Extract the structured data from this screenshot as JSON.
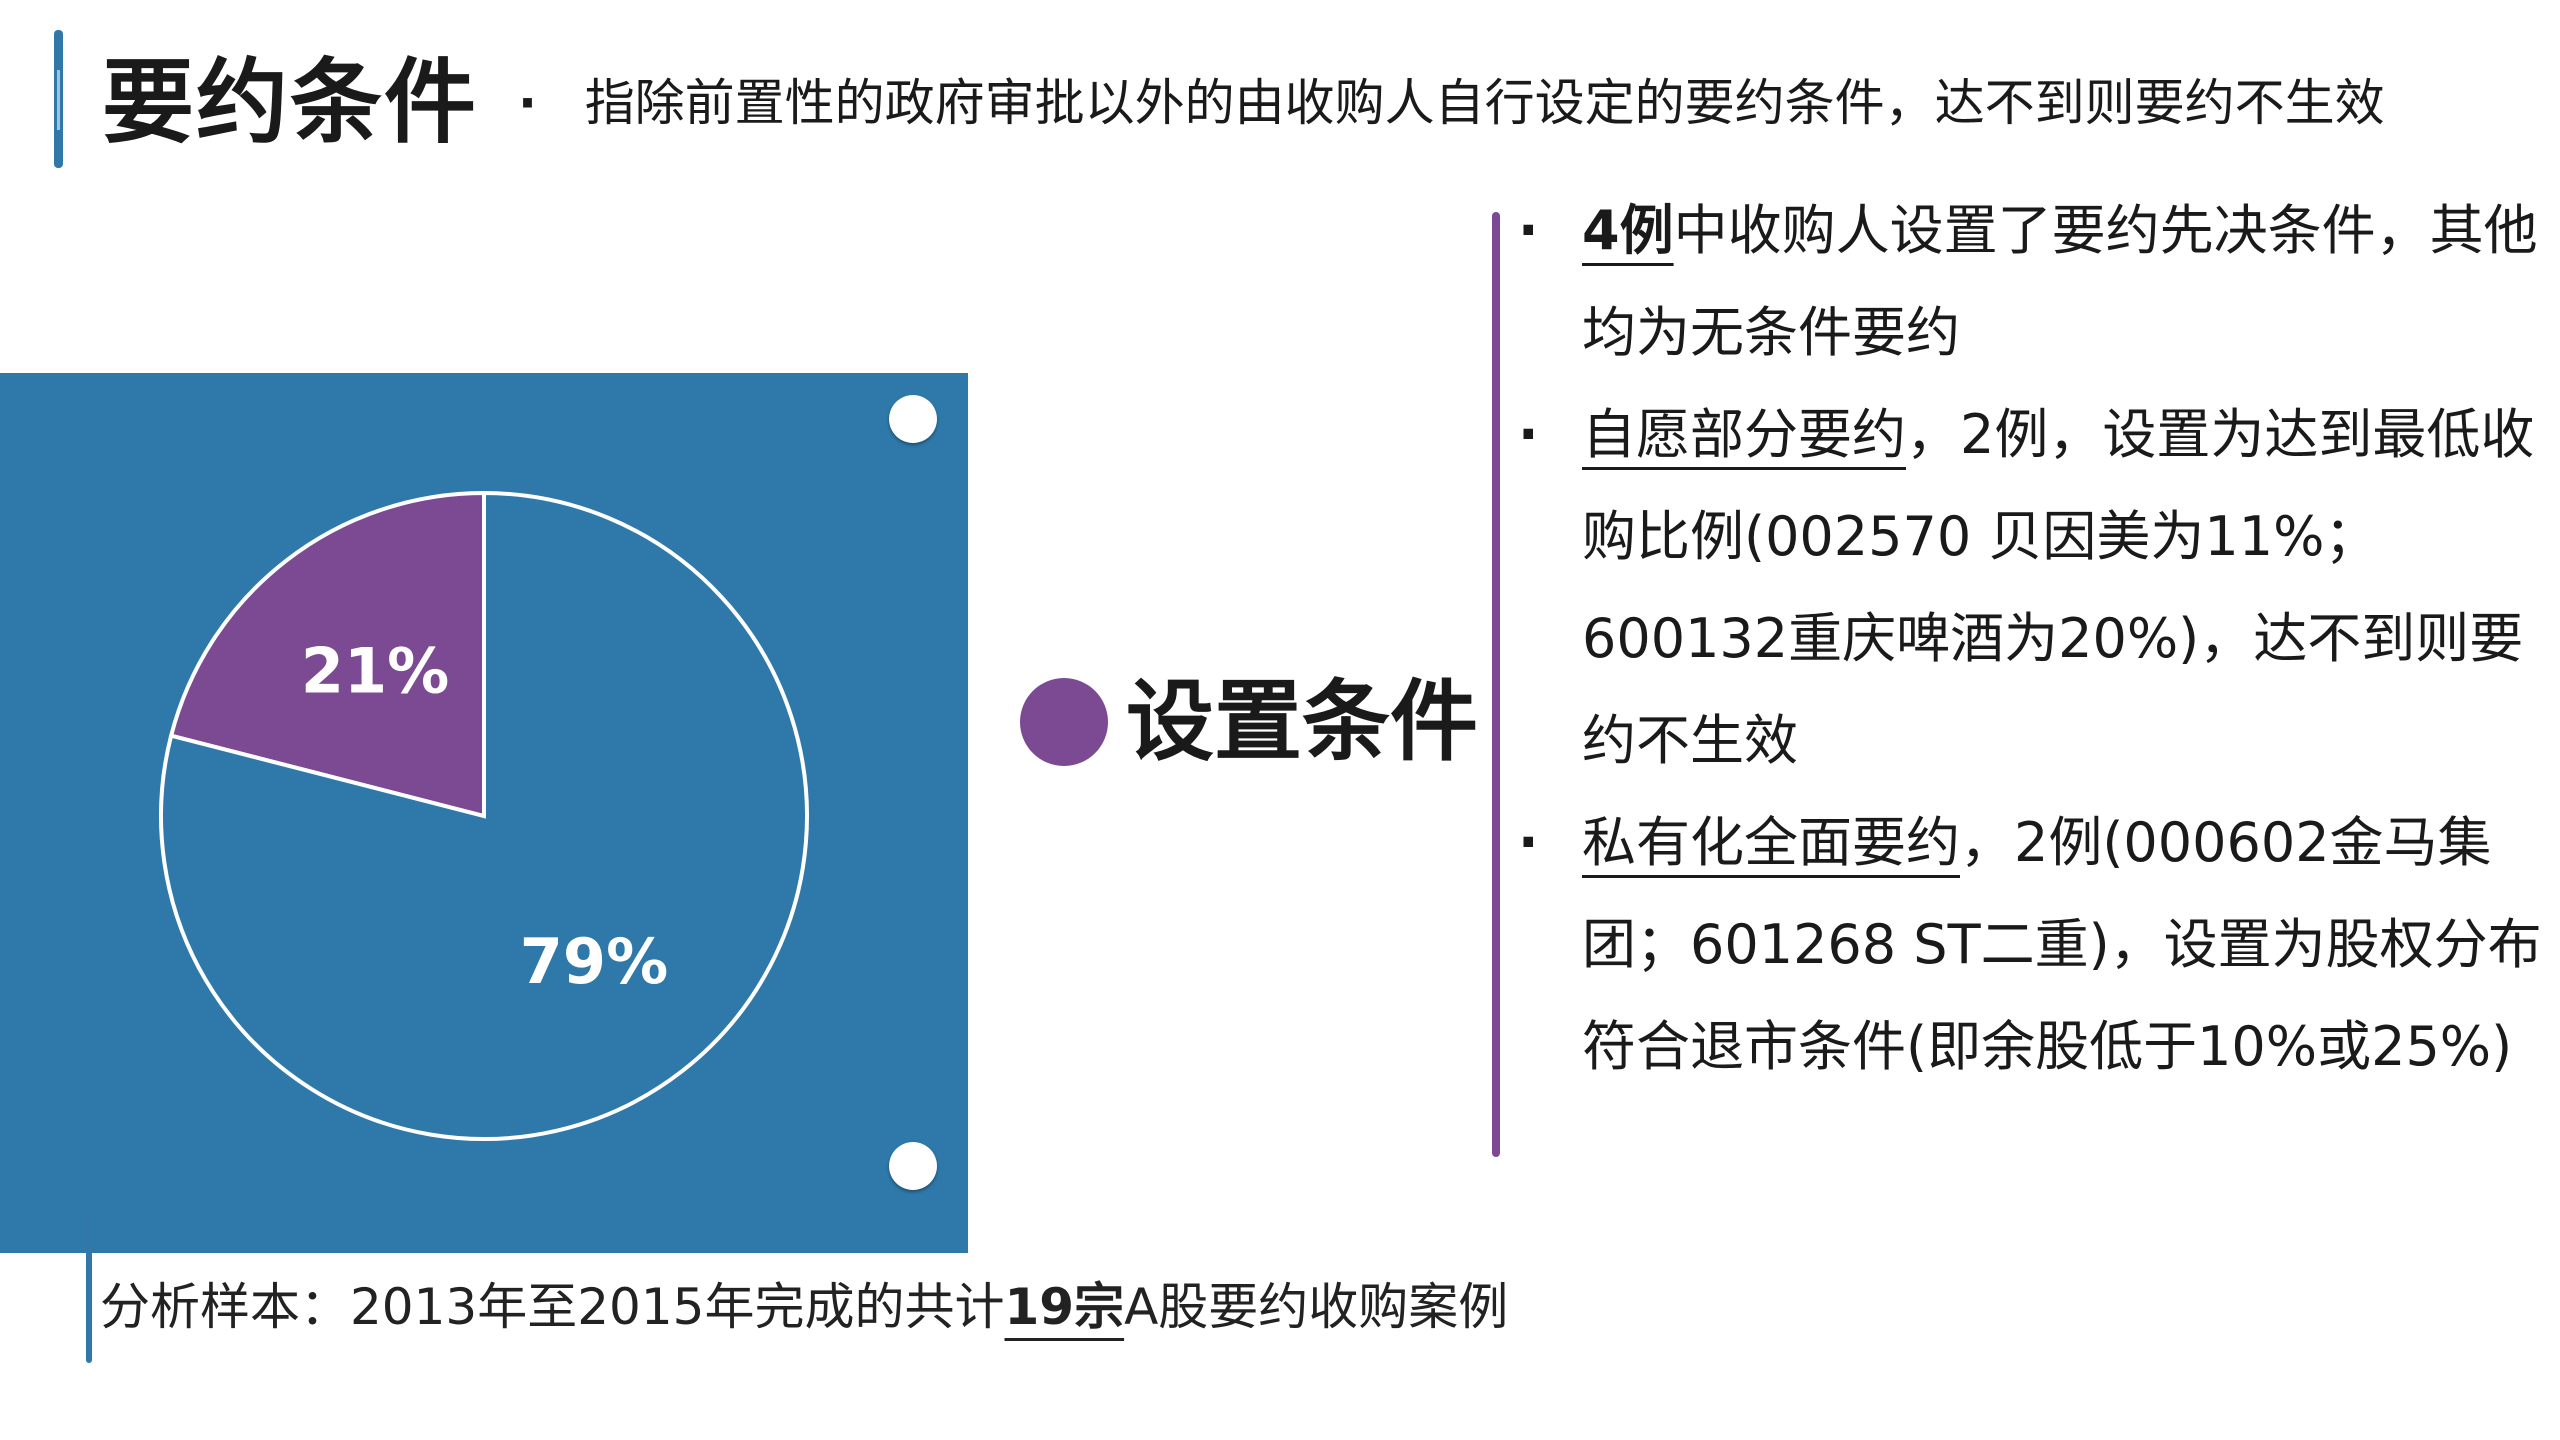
{
  "header": {
    "title": "要约条件",
    "bullet": "·",
    "description": "指除前置性的政府审批以外的由收购人自行设定的要约条件，达不到则要约不生效"
  },
  "chart_data": {
    "type": "pie",
    "slices": [
      {
        "label": "21%",
        "value": 21,
        "color": "#7b4a92"
      },
      {
        "label": "79%",
        "value": 79,
        "color": "#2e79a9"
      }
    ],
    "colors": {
      "board": "#2e79a9",
      "outline": "#ffffff"
    }
  },
  "center": {
    "label": "设置条件",
    "dot_color": "#7b4a92"
  },
  "bullets": [
    {
      "marker": "·",
      "lead": "4例",
      "rest": "中收购人设置了要约先决条件，其他均为无条件要约"
    },
    {
      "marker": "·",
      "lead": "自愿部分要约",
      "rest": "，2例，设置为达到最低收购比例(002570 贝因美为11%；600132重庆啤酒为20%)，达不到则要约不生效"
    },
    {
      "marker": "·",
      "lead": "私有化全面要约",
      "rest": "，2例(000602金马集团；601268 ST二重)，设置为股权分布符合退市条件(即余股低于10%或25%)"
    }
  ],
  "footer": {
    "prefix": "分析样本：2013年至2015年完成的共计",
    "highlight": "19宗",
    "suffix": "A股要约收购案例"
  }
}
